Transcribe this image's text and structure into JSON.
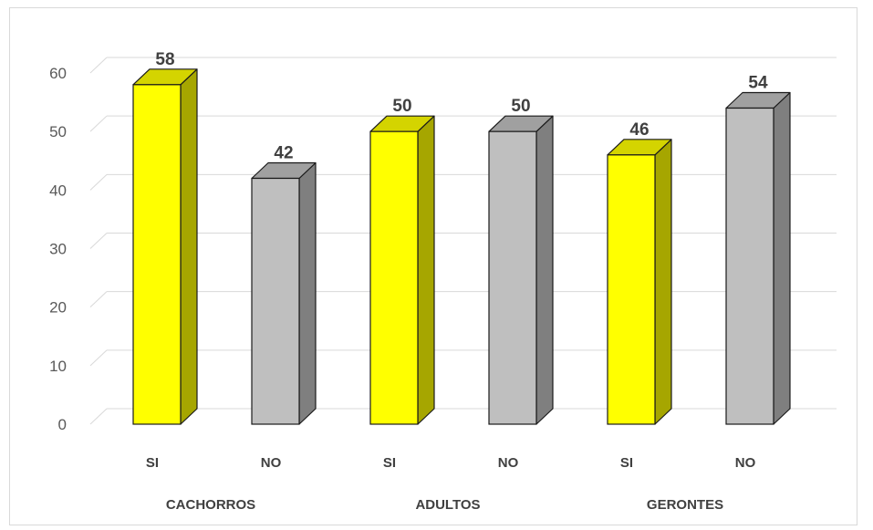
{
  "chart_data": {
    "type": "bar",
    "groups": [
      "CACHORROS",
      "ADULTOS",
      "GERONTES"
    ],
    "categories": [
      "SI",
      "NO",
      "SI",
      "NO",
      "SI",
      "NO"
    ],
    "values": [
      58,
      42,
      50,
      50,
      46,
      54
    ],
    "ylim": [
      0,
      60
    ],
    "yticks": [
      "0",
      "10",
      "20",
      "30",
      "40",
      "50",
      "60"
    ],
    "grid": true,
    "bar_style": "3d",
    "colors": {
      "SI": {
        "front": "#ffff00",
        "side": "#a6a600",
        "top": "#d4d400"
      },
      "NO": {
        "front": "#bfbfbf",
        "side": "#7f7f7f",
        "top": "#a0a0a0"
      },
      "grid": "#d9d9d9",
      "text": "#595959"
    }
  }
}
